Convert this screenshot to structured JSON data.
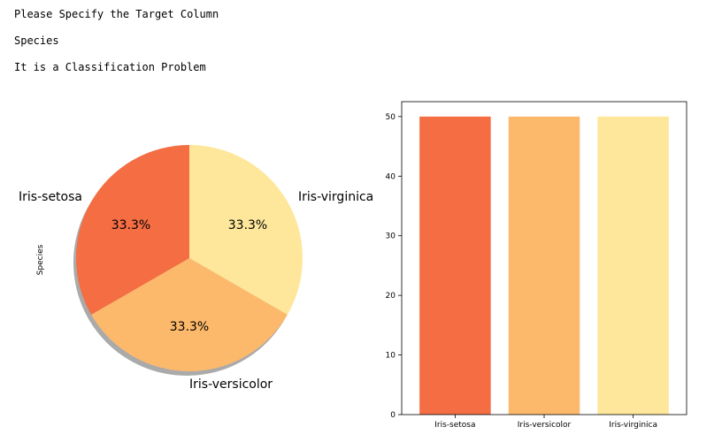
{
  "output": {
    "lines": [
      "Please Specify the Target Column",
      "Species",
      "It is a Classification Problem"
    ]
  },
  "colors": {
    "setosa": "#f46d43",
    "versicolor": "#fdb96b",
    "virginica": "#fee79a",
    "shadow": "#9b9b9b",
    "axis": "#000000"
  },
  "chart_data": [
    {
      "type": "pie",
      "ylabel": "Species",
      "labels": [
        "Iris-setosa",
        "Iris-versicolor",
        "Iris-virginica"
      ],
      "values": [
        50,
        50,
        50
      ],
      "pct_labels": [
        "33.3%",
        "33.3%",
        "33.3%"
      ],
      "shadow": true
    },
    {
      "type": "bar",
      "categories": [
        "Iris-setosa",
        "Iris-versicolor",
        "Iris-virginica"
      ],
      "values": [
        50,
        50,
        50
      ],
      "ylim": [
        0,
        52.5
      ],
      "yticks": [
        0,
        10,
        20,
        30,
        40,
        50
      ],
      "grid": false
    }
  ]
}
